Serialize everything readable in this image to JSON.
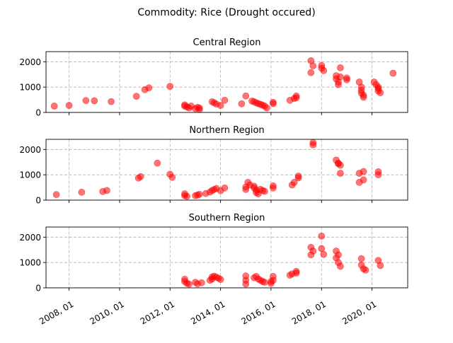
{
  "chart_data": {
    "type": "scatter",
    "title": "Commodity: Rice (Drought occured)",
    "x_axis": {
      "range": [
        "2007-02-01",
        "2021-06-01"
      ],
      "ticks": [
        "2008-01-01",
        "2010-01-01",
        "2012-01-01",
        "2014-01-01",
        "2016-01-01",
        "2018-01-01",
        "2020-01-01"
      ],
      "tick_labels": [
        "2008, 01",
        "2010, 01",
        "2012, 01",
        "2014, 01",
        "2016, 01",
        "2018, 01",
        "2020, 01"
      ]
    },
    "y_axis": {
      "range": [
        0,
        2400
      ],
      "ticks": [
        0,
        1000,
        2000
      ],
      "tick_labels": [
        "0",
        "1000",
        "2000"
      ]
    },
    "grid": true,
    "marker_color": "#ff0000",
    "marker_alpha": 0.55,
    "panels": [
      {
        "title": "Central Region",
        "points": [
          [
            "2007-06-01",
            250
          ],
          [
            "2008-01-01",
            280
          ],
          [
            "2008-09-01",
            470
          ],
          [
            "2009-01-01",
            460
          ],
          [
            "2009-09-01",
            430
          ],
          [
            "2010-09-01",
            640
          ],
          [
            "2011-01-01",
            900
          ],
          [
            "2011-03-01",
            970
          ],
          [
            "2012-01-01",
            1030
          ],
          [
            "2012-08-01",
            300
          ],
          [
            "2012-08-01",
            250
          ],
          [
            "2012-09-01",
            220
          ],
          [
            "2012-10-01",
            180
          ],
          [
            "2012-11-01",
            250
          ],
          [
            "2013-01-01",
            150
          ],
          [
            "2013-02-01",
            200
          ],
          [
            "2013-03-01",
            120
          ],
          [
            "2013-03-01",
            180
          ],
          [
            "2013-09-01",
            420
          ],
          [
            "2013-10-01",
            380
          ],
          [
            "2013-11-01",
            330
          ],
          [
            "2014-01-01",
            280
          ],
          [
            "2014-03-01",
            480
          ],
          [
            "2014-11-01",
            340
          ],
          [
            "2015-01-01",
            650
          ],
          [
            "2015-04-01",
            450
          ],
          [
            "2015-05-01",
            420
          ],
          [
            "2015-06-01",
            380
          ],
          [
            "2015-07-01",
            350
          ],
          [
            "2015-08-01",
            320
          ],
          [
            "2015-09-01",
            290
          ],
          [
            "2015-10-01",
            250
          ],
          [
            "2015-11-01",
            180
          ],
          [
            "2016-02-01",
            350
          ],
          [
            "2016-02-01",
            400
          ],
          [
            "2016-10-01",
            480
          ],
          [
            "2016-12-01",
            550
          ],
          [
            "2017-01-01",
            650
          ],
          [
            "2017-01-01",
            580
          ],
          [
            "2017-08-01",
            2040
          ],
          [
            "2017-08-01",
            1570
          ],
          [
            "2017-09-01",
            1840
          ],
          [
            "2018-01-01",
            1850
          ],
          [
            "2018-01-01",
            1750
          ],
          [
            "2018-02-01",
            1650
          ],
          [
            "2018-08-01",
            1450
          ],
          [
            "2018-08-01",
            1320
          ],
          [
            "2018-09-01",
            1200
          ],
          [
            "2018-09-01",
            1100
          ],
          [
            "2018-10-01",
            1760
          ],
          [
            "2018-10-01",
            1400
          ],
          [
            "2019-01-01",
            1360
          ],
          [
            "2019-01-01",
            1290
          ],
          [
            "2019-07-01",
            1200
          ],
          [
            "2019-08-01",
            1000
          ],
          [
            "2019-08-01",
            870
          ],
          [
            "2019-08-01",
            760
          ],
          [
            "2019-09-01",
            680
          ],
          [
            "2019-09-01",
            600
          ],
          [
            "2020-02-01",
            1200
          ],
          [
            "2020-03-01",
            1100
          ],
          [
            "2020-04-01",
            1000
          ],
          [
            "2020-04-01",
            950
          ],
          [
            "2020-04-01",
            850
          ],
          [
            "2020-05-01",
            780
          ],
          [
            "2020-11-01",
            1550
          ]
        ]
      },
      {
        "title": "Northern Region",
        "points": [
          [
            "2007-07-01",
            220
          ],
          [
            "2008-07-01",
            310
          ],
          [
            "2009-05-01",
            340
          ],
          [
            "2009-07-01",
            380
          ],
          [
            "2010-10-01",
            870
          ],
          [
            "2010-11-01",
            930
          ],
          [
            "2011-07-01",
            1460
          ],
          [
            "2012-01-01",
            1020
          ],
          [
            "2012-02-01",
            900
          ],
          [
            "2012-08-01",
            250
          ],
          [
            "2012-08-01",
            180
          ],
          [
            "2012-09-01",
            150
          ],
          [
            "2013-01-01",
            180
          ],
          [
            "2013-02-01",
            200
          ],
          [
            "2013-03-01",
            230
          ],
          [
            "2013-06-01",
            260
          ],
          [
            "2013-08-01",
            320
          ],
          [
            "2013-09-01",
            380
          ],
          [
            "2013-10-01",
            420
          ],
          [
            "2013-11-01",
            460
          ],
          [
            "2014-01-01",
            370
          ],
          [
            "2014-03-01",
            480
          ],
          [
            "2015-01-01",
            420
          ],
          [
            "2015-01-01",
            520
          ],
          [
            "2015-02-01",
            700
          ],
          [
            "2015-03-01",
            600
          ],
          [
            "2015-05-01",
            550
          ],
          [
            "2015-05-01",
            480
          ],
          [
            "2015-06-01",
            400
          ],
          [
            "2015-06-01",
            300
          ],
          [
            "2015-07-01",
            250
          ],
          [
            "2015-08-01",
            430
          ],
          [
            "2015-09-01",
            380
          ],
          [
            "2015-10-01",
            350
          ],
          [
            "2016-02-01",
            480
          ],
          [
            "2016-02-01",
            560
          ],
          [
            "2016-11-01",
            600
          ],
          [
            "2016-12-01",
            700
          ],
          [
            "2017-02-01",
            880
          ],
          [
            "2017-02-01",
            950
          ],
          [
            "2017-09-01",
            2270
          ],
          [
            "2017-09-01",
            2180
          ],
          [
            "2018-08-01",
            1580
          ],
          [
            "2018-09-01",
            1440
          ],
          [
            "2018-09-01",
            1460
          ],
          [
            "2018-10-01",
            1380
          ],
          [
            "2018-10-01",
            1060
          ],
          [
            "2019-07-01",
            1060
          ],
          [
            "2019-07-01",
            700
          ],
          [
            "2019-09-01",
            1130
          ],
          [
            "2019-09-01",
            800
          ],
          [
            "2020-04-01",
            1120
          ],
          [
            "2020-04-01",
            1000
          ]
        ]
      },
      {
        "title": "Southern Region",
        "points": [
          [
            "2012-08-01",
            340
          ],
          [
            "2012-08-01",
            250
          ],
          [
            "2012-09-01",
            180
          ],
          [
            "2012-10-01",
            150
          ],
          [
            "2013-01-01",
            220
          ],
          [
            "2013-02-01",
            160
          ],
          [
            "2013-04-01",
            200
          ],
          [
            "2013-08-01",
            300
          ],
          [
            "2013-09-01",
            350
          ],
          [
            "2013-09-01",
            430
          ],
          [
            "2013-10-01",
            460
          ],
          [
            "2013-11-01",
            420
          ],
          [
            "2013-12-01",
            380
          ],
          [
            "2014-01-01",
            330
          ],
          [
            "2015-01-01",
            150
          ],
          [
            "2015-01-01",
            300
          ],
          [
            "2015-01-01",
            470
          ],
          [
            "2015-05-01",
            400
          ],
          [
            "2015-06-01",
            450
          ],
          [
            "2015-07-01",
            350
          ],
          [
            "2015-08-01",
            300
          ],
          [
            "2015-09-01",
            250
          ],
          [
            "2015-10-01",
            220
          ],
          [
            "2016-01-01",
            180
          ],
          [
            "2016-01-01",
            250
          ],
          [
            "2016-02-01",
            300
          ],
          [
            "2016-02-01",
            450
          ],
          [
            "2016-10-01",
            500
          ],
          [
            "2016-11-01",
            550
          ],
          [
            "2017-01-01",
            650
          ],
          [
            "2017-01-01",
            580
          ],
          [
            "2017-08-01",
            1600
          ],
          [
            "2017-08-01",
            1300
          ],
          [
            "2017-09-01",
            1450
          ],
          [
            "2018-01-01",
            2040
          ],
          [
            "2018-01-01",
            1550
          ],
          [
            "2018-02-01",
            1320
          ],
          [
            "2018-08-01",
            1450
          ],
          [
            "2018-08-01",
            1180
          ],
          [
            "2018-09-01",
            1000
          ],
          [
            "2018-09-01",
            1300
          ],
          [
            "2018-10-01",
            850
          ],
          [
            "2019-08-01",
            1150
          ],
          [
            "2019-08-01",
            900
          ],
          [
            "2019-09-01",
            750
          ],
          [
            "2019-10-01",
            700
          ],
          [
            "2020-04-01",
            1080
          ],
          [
            "2020-05-01",
            880
          ]
        ]
      }
    ]
  }
}
